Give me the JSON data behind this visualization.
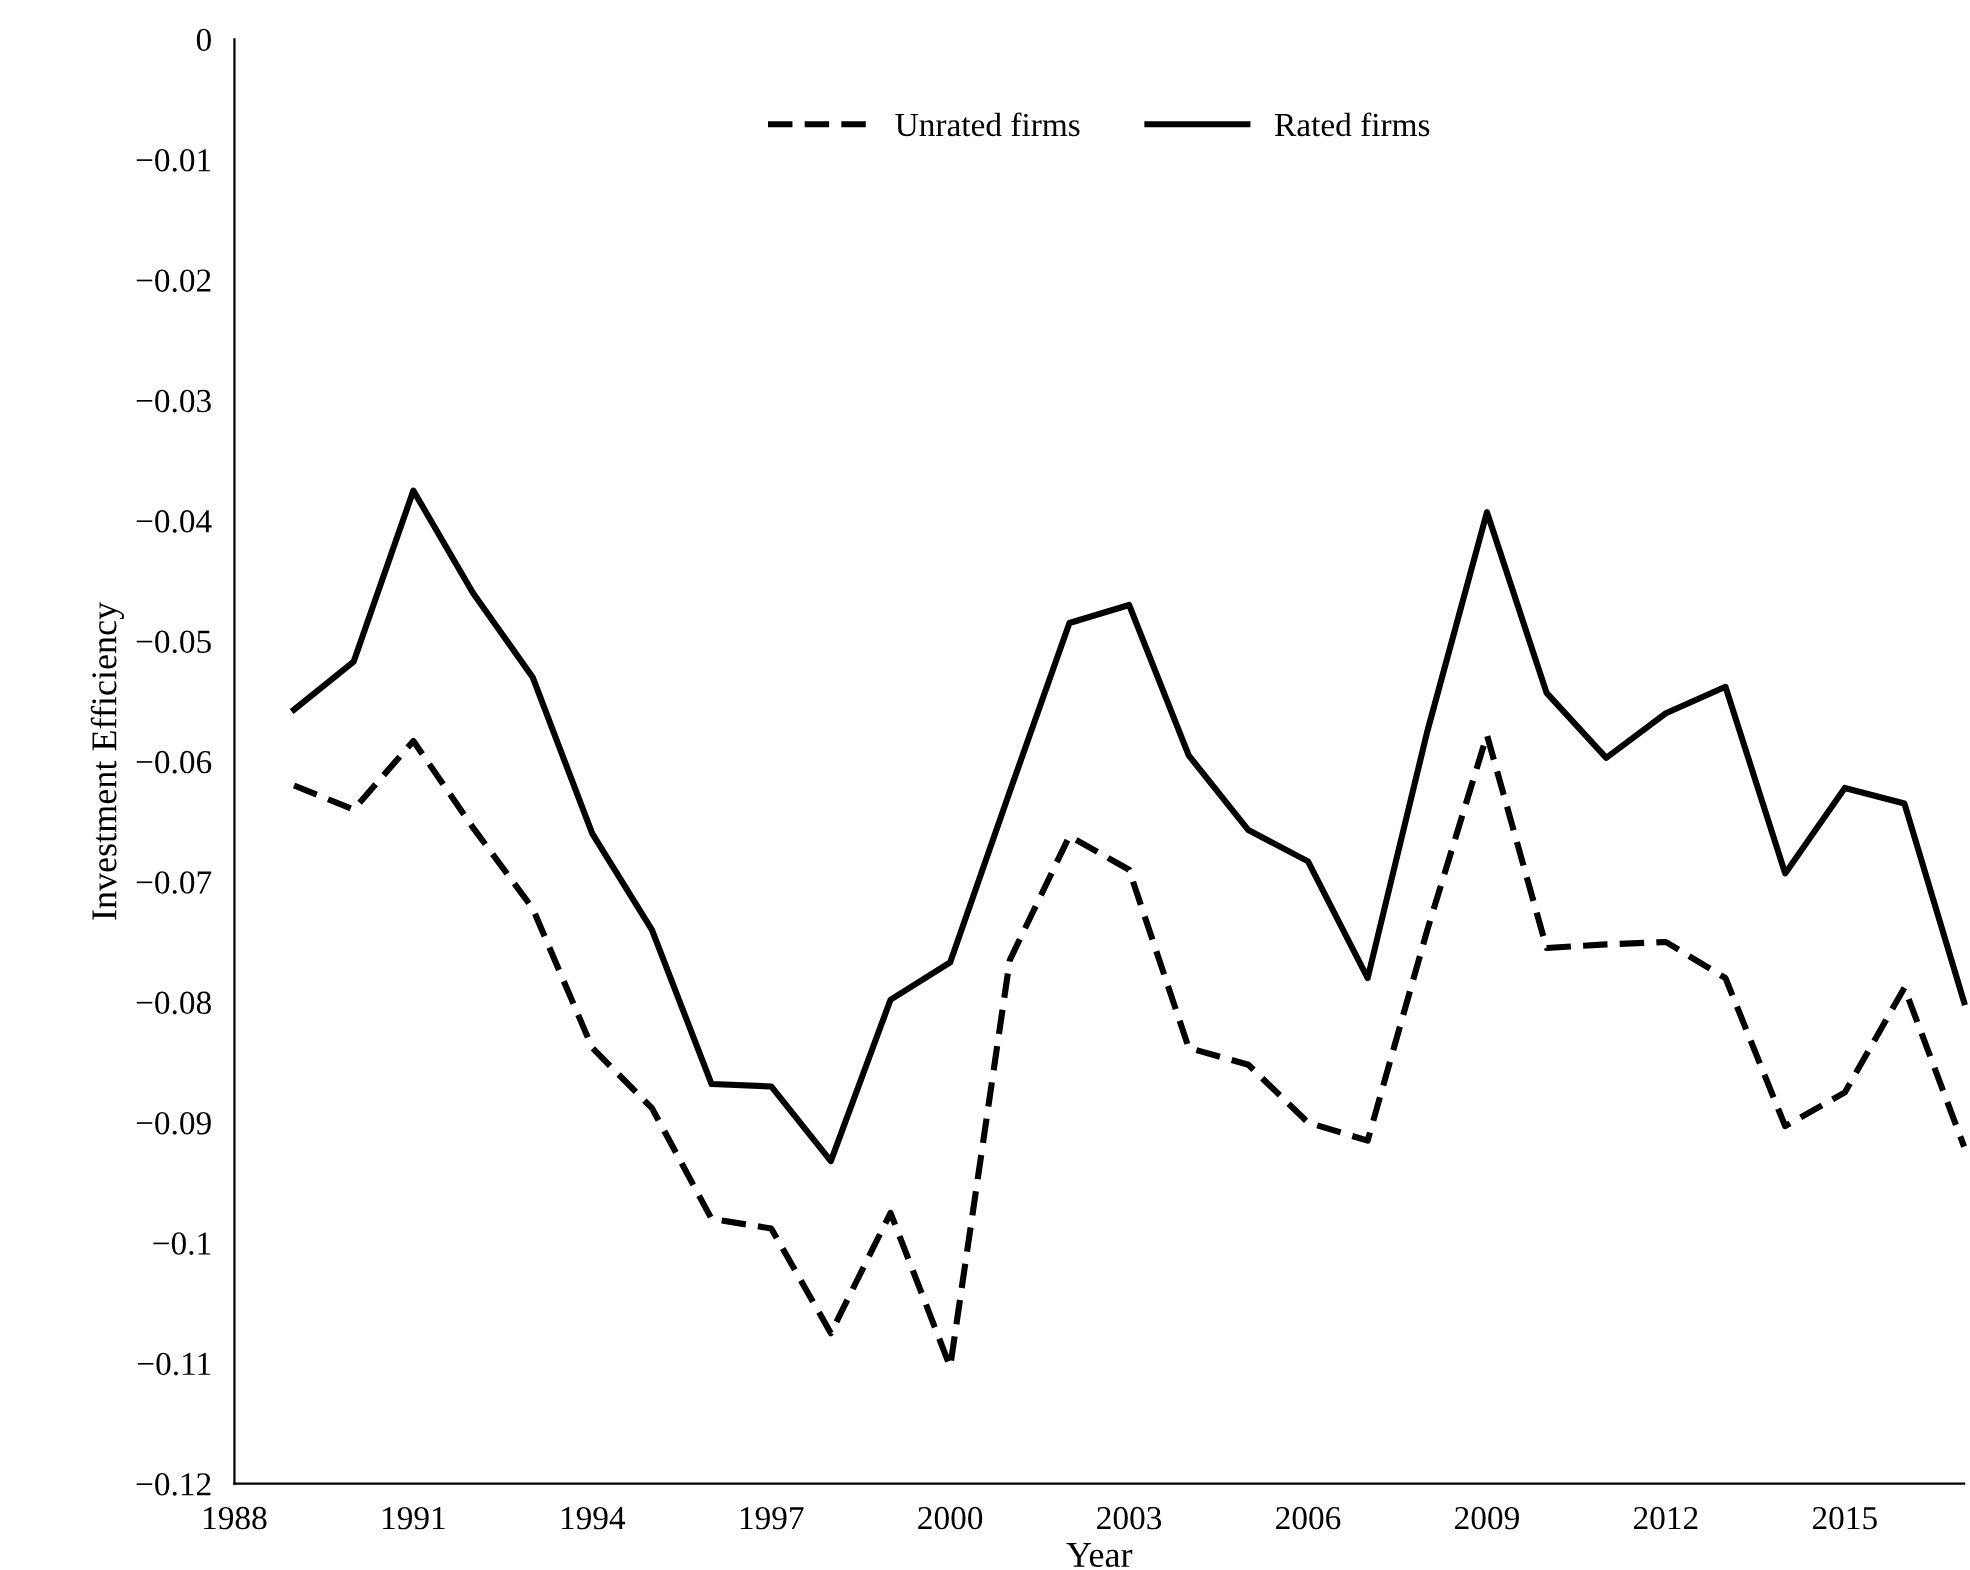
{
  "chart_data": {
    "type": "line",
    "xlabel": "Year",
    "ylabel": "Investment Efficiency",
    "x": [
      1989,
      1990,
      1991,
      1992,
      1993,
      1994,
      1995,
      1996,
      1997,
      1998,
      1999,
      2000,
      2001,
      2002,
      2003,
      2004,
      2005,
      2006,
      2007,
      2008,
      2009,
      2010,
      2011,
      2012,
      2013,
      2014,
      2015,
      2016,
      2017
    ],
    "series": [
      {
        "name": "Unrated firms",
        "color": "#000000",
        "line_style": "dashed",
        "values": [
          -0.062,
          -0.064,
          -0.0583,
          -0.0655,
          -0.0722,
          -0.0838,
          -0.0888,
          -0.098,
          -0.0988,
          -0.1075,
          -0.0975,
          -0.1103,
          -0.0765,
          -0.0662,
          -0.069,
          -0.0838,
          -0.0852,
          -0.09,
          -0.0915,
          -0.074,
          -0.0578,
          -0.0755,
          -0.0752,
          -0.075,
          -0.078,
          -0.0903,
          -0.0875,
          -0.0788,
          -0.092
        ]
      },
      {
        "name": "Rated firms",
        "color": "#000000",
        "line_style": "solid",
        "values": [
          -0.0557,
          -0.0517,
          -0.0375,
          -0.046,
          -0.053,
          -0.066,
          -0.074,
          -0.0868,
          -0.087,
          -0.0932,
          -0.0798,
          -0.0767,
          -0.0625,
          -0.0485,
          -0.047,
          -0.0595,
          -0.0657,
          -0.0683,
          -0.078,
          -0.0575,
          -0.0393,
          -0.0543,
          -0.0597,
          -0.056,
          -0.0538,
          -0.0693,
          -0.0622,
          -0.0635,
          -0.08
        ]
      }
    ],
    "xlim": [
      1988,
      2017
    ],
    "xticks": [
      1988,
      1991,
      1994,
      1997,
      2000,
      2003,
      2006,
      2009,
      2012,
      2015
    ],
    "ylim": [
      -0.12,
      0
    ],
    "yticks": [
      {
        "value": 0,
        "label": "0"
      },
      {
        "value": -0.01,
        "label": "−0.01"
      },
      {
        "value": -0.02,
        "label": "−0.02"
      },
      {
        "value": -0.03,
        "label": "−0.03"
      },
      {
        "value": -0.04,
        "label": "−0.04"
      },
      {
        "value": -0.05,
        "label": "−0.05"
      },
      {
        "value": -0.06,
        "label": "−0.06"
      },
      {
        "value": -0.07,
        "label": "−0.07"
      },
      {
        "value": -0.08,
        "label": "−0.08"
      },
      {
        "value": -0.09,
        "label": "−0.09"
      },
      {
        "value": -0.1,
        "label": "−0.1"
      },
      {
        "value": -0.11,
        "label": "−0.11"
      },
      {
        "value": -0.12,
        "label": "−0.12"
      }
    ],
    "grid": false,
    "legend": "top",
    "marker": "none"
  }
}
